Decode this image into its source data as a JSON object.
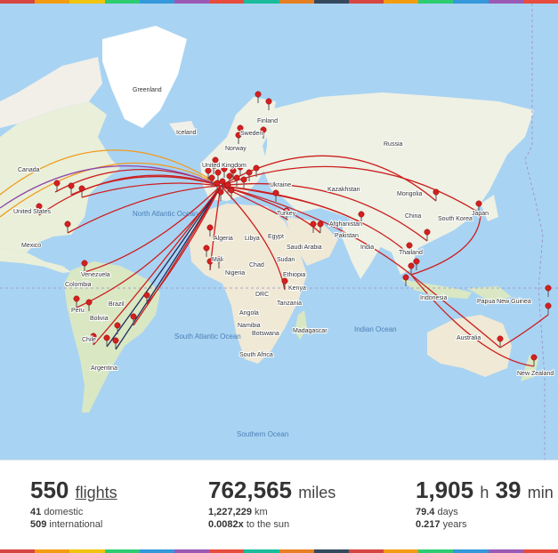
{
  "stripe_colors": [
    "#d64541",
    "#f39c12",
    "#f1c40f",
    "#2ecc71",
    "#3498db",
    "#9b59b6",
    "#e74c3c",
    "#1abc9c",
    "#e67e22",
    "#34495e",
    "#d64541",
    "#f39c12",
    "#2ecc71",
    "#3498db",
    "#9b59b6",
    "#e74c3c"
  ],
  "map": {
    "colors": {
      "ocean": "#a9d3f2",
      "land": "#f2efe9",
      "green": "#cfe6b8",
      "ice": "#ffffff",
      "route_red": "#cc1f1f",
      "route_orange": "#f29a1c",
      "route_purple": "#8e44ad",
      "route_navy": "#1f2a5a",
      "pin": "#d42020"
    },
    "labels": {
      "greenland": "Greenland",
      "iceland": "Iceland",
      "finland": "Finland",
      "sweden": "Sweden",
      "norway": "Norway",
      "russia": "Russia",
      "united_kingdom": "United Kingdom",
      "ukraine": "Ukraine",
      "kazakhstan": "Kazakhstan",
      "mongolia": "Mongolia",
      "china": "China",
      "south_korea": "South Korea",
      "japan": "Japan",
      "canada": "Canada",
      "united_states": "United States",
      "mexico": "Mexico",
      "north_atlantic_ocean": "North Atlantic Ocean",
      "turkey": "Turkey",
      "algeria": "Algeria",
      "libya": "Libya",
      "egypt": "Egypt",
      "saudi_arabia": "Saudi Arabia",
      "afghanistan": "Afghanistan",
      "pakistan": "Pakistan",
      "india": "India",
      "thailand": "Thailand",
      "mali": "Mali",
      "chad": "Chad",
      "sudan": "Sudan",
      "nigeria": "Nigeria",
      "ethiopia": "Ethiopia",
      "kenya": "Kenya",
      "drc": "DRC",
      "tanzania": "Tanzania",
      "angola": "Angola",
      "namibia": "Namibia",
      "botswana": "Botswana",
      "madagascar": "Madagascar",
      "south_africa": "South Africa",
      "venezuela": "Venezuela",
      "colombia": "Colombia",
      "peru": "Peru",
      "brazil": "Brazil",
      "bolivia": "Bolivia",
      "chile": "Chile",
      "argentina": "Argentina",
      "south_atlantic_ocean": "South Atlantic Ocean",
      "indian_ocean": "Indian Ocean",
      "southern_ocean": "Southern Ocean",
      "indonesia": "Indonesia",
      "papua_new_guinea": "Papua New Guinea",
      "australia": "Australia",
      "new_zealand": "New Zealand"
    }
  },
  "stats": {
    "flights": {
      "value": "550",
      "unit": "flights",
      "domestic_num": "41",
      "domestic_label": "domestic",
      "international_num": "509",
      "international_label": "international"
    },
    "distance": {
      "value": "762,565",
      "unit": "miles",
      "km_num": "1,227,229",
      "km_label": "km",
      "sun_num": "0.0082x",
      "sun_label": "to the sun"
    },
    "time": {
      "hours": "1,905",
      "hours_unit": "h",
      "minutes": "39",
      "minutes_unit": "min",
      "days_num": "79.4",
      "days_label": "days",
      "years_num": "0.217",
      "years_label": "years"
    }
  }
}
